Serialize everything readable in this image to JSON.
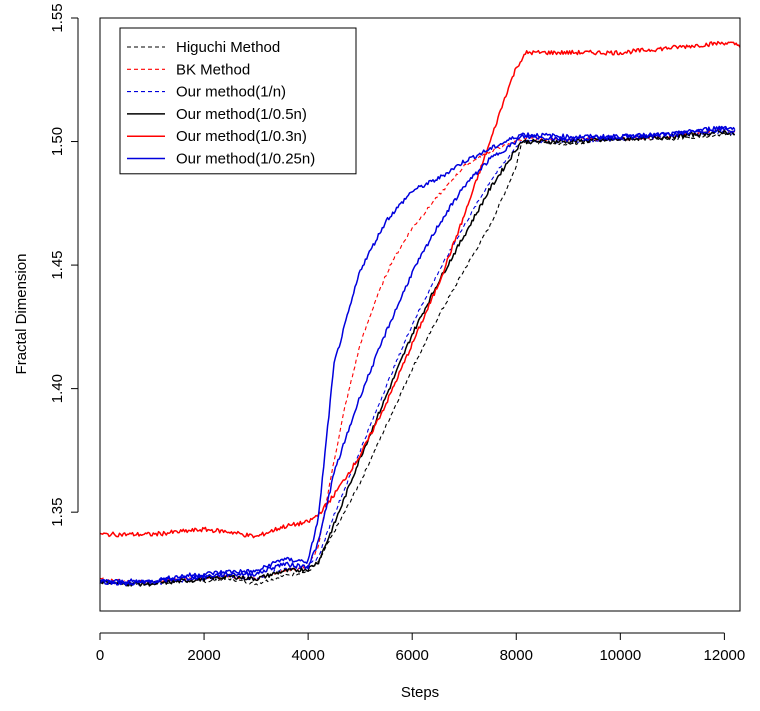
{
  "chart_data": {
    "type": "line",
    "xlabel": "Steps",
    "ylabel": "Fractal Dimension",
    "xlim": [
      0,
      12300
    ],
    "ylim": [
      1.31,
      1.55
    ],
    "xticks": [
      0,
      2000,
      4000,
      6000,
      8000,
      10000,
      12000
    ],
    "yticks": [
      1.35,
      1.4,
      1.45,
      1.5,
      1.55
    ],
    "xtick_labels": [
      "0",
      "2000",
      "4000",
      "6000",
      "8000",
      "10000",
      "12000"
    ],
    "ytick_labels": [
      "1.35",
      "1.40",
      "1.45",
      "1.50",
      "1.55"
    ],
    "grid": false,
    "legend_position": "top-left",
    "series": [
      {
        "name": "Higuchi Method",
        "color": "#000000",
        "dash": "dashed",
        "width": 1.1,
        "x": [
          0,
          500,
          1000,
          1500,
          2000,
          2500,
          3000,
          3500,
          4000,
          4200,
          4500,
          5000,
          5500,
          6000,
          6500,
          7000,
          7500,
          8000,
          8100,
          9000,
          10000,
          11000,
          12000,
          12200
        ],
        "y": [
          1.322,
          1.321,
          1.321,
          1.322,
          1.322,
          1.323,
          1.321,
          1.324,
          1.326,
          1.33,
          1.342,
          1.362,
          1.385,
          1.408,
          1.429,
          1.448,
          1.466,
          1.49,
          1.5,
          1.499,
          1.501,
          1.501,
          1.503,
          1.503
        ]
      },
      {
        "name": "BK Method",
        "color": "#ff0000",
        "dash": "dashed",
        "width": 1.1,
        "x": [
          0,
          500,
          1000,
          1500,
          2000,
          2500,
          3000,
          3500,
          4000,
          4200,
          4400,
          4700,
          5000,
          5300,
          5600,
          6000,
          6500,
          7000,
          7500,
          8000,
          8100,
          9000,
          10000,
          11000,
          12000,
          12200
        ],
        "y": [
          1.323,
          1.322,
          1.322,
          1.323,
          1.323,
          1.324,
          1.323,
          1.326,
          1.328,
          1.336,
          1.36,
          1.392,
          1.418,
          1.436,
          1.451,
          1.465,
          1.478,
          1.49,
          1.496,
          1.5,
          1.501,
          1.501,
          1.501,
          1.502,
          1.505,
          1.504
        ]
      },
      {
        "name": "Our method(1/n)",
        "color": "#0000dd",
        "dash": "dashed",
        "width": 1.1,
        "x": [
          0,
          500,
          1000,
          1500,
          2000,
          2500,
          3000,
          3500,
          4000,
          4200,
          4500,
          5000,
          5500,
          6000,
          6500,
          7000,
          7500,
          8000,
          8100,
          9000,
          10000,
          11000,
          12000,
          12200
        ],
        "y": [
          1.322,
          1.321,
          1.321,
          1.322,
          1.323,
          1.324,
          1.323,
          1.327,
          1.328,
          1.332,
          1.349,
          1.375,
          1.401,
          1.426,
          1.447,
          1.466,
          1.484,
          1.498,
          1.5,
          1.5,
          1.501,
          1.502,
          1.504,
          1.503
        ]
      },
      {
        "name": "Our method(1/0.5n)",
        "color": "#000000",
        "dash": "solid",
        "width": 1.5,
        "x": [
          0,
          500,
          1000,
          1500,
          2000,
          2500,
          3000,
          3500,
          4000,
          4200,
          4500,
          5000,
          5500,
          6000,
          6500,
          7000,
          7500,
          8000,
          8100,
          9000,
          10000,
          11000,
          12000,
          12200
        ],
        "y": [
          1.322,
          1.321,
          1.321,
          1.322,
          1.323,
          1.324,
          1.323,
          1.326,
          1.327,
          1.33,
          1.345,
          1.372,
          1.397,
          1.422,
          1.443,
          1.462,
          1.481,
          1.497,
          1.5,
          1.5,
          1.501,
          1.502,
          1.504,
          1.503
        ]
      },
      {
        "name": "Our method(1/0.3n)",
        "color": "#ff0000",
        "dash": "solid",
        "width": 1.5,
        "x": [
          0,
          500,
          1000,
          1500,
          2000,
          2500,
          3000,
          3500,
          4000,
          4200,
          4500,
          5000,
          5500,
          6000,
          6500,
          7000,
          7500,
          7800,
          8000,
          8200,
          9000,
          10000,
          11000,
          12000,
          12300
        ],
        "y": [
          1.341,
          1.341,
          1.341,
          1.342,
          1.343,
          1.342,
          1.34,
          1.344,
          1.346,
          1.349,
          1.357,
          1.373,
          1.394,
          1.418,
          1.442,
          1.47,
          1.5,
          1.519,
          1.53,
          1.536,
          1.536,
          1.536,
          1.538,
          1.54,
          1.539
        ]
      },
      {
        "name": "Our method(1/0.25n)",
        "color": "#0000dd",
        "dash": "solid",
        "width": 1.5,
        "x": [
          0,
          500,
          1000,
          1500,
          2000,
          2500,
          3000,
          3500,
          4000,
          4200,
          4500,
          5000,
          5500,
          6000,
          6500,
          7000,
          7500,
          8000,
          8100,
          9000,
          10000,
          11000,
          12000,
          12200
        ],
        "y": [
          1.322,
          1.322,
          1.322,
          1.324,
          1.325,
          1.326,
          1.326,
          1.331,
          1.33,
          1.348,
          1.41,
          1.448,
          1.468,
          1.48,
          1.485,
          1.492,
          1.497,
          1.502,
          1.503,
          1.502,
          1.502,
          1.503,
          1.506,
          1.505
        ]
      },
      {
        "name": "",
        "color": "#0000dd",
        "dash": "solid",
        "width": 1.5,
        "x": [
          0,
          500,
          1000,
          1500,
          2000,
          2500,
          3000,
          3500,
          4000,
          4200,
          4500,
          5000,
          5500,
          6000,
          6500,
          7000,
          7500,
          8000,
          8100,
          9000,
          10000,
          11000,
          12000,
          12200
        ],
        "y": [
          1.322,
          1.321,
          1.322,
          1.323,
          1.324,
          1.325,
          1.325,
          1.329,
          1.328,
          1.338,
          1.366,
          1.397,
          1.423,
          1.447,
          1.466,
          1.482,
          1.493,
          1.5,
          1.502,
          1.501,
          1.502,
          1.503,
          1.505,
          1.504
        ]
      }
    ]
  }
}
